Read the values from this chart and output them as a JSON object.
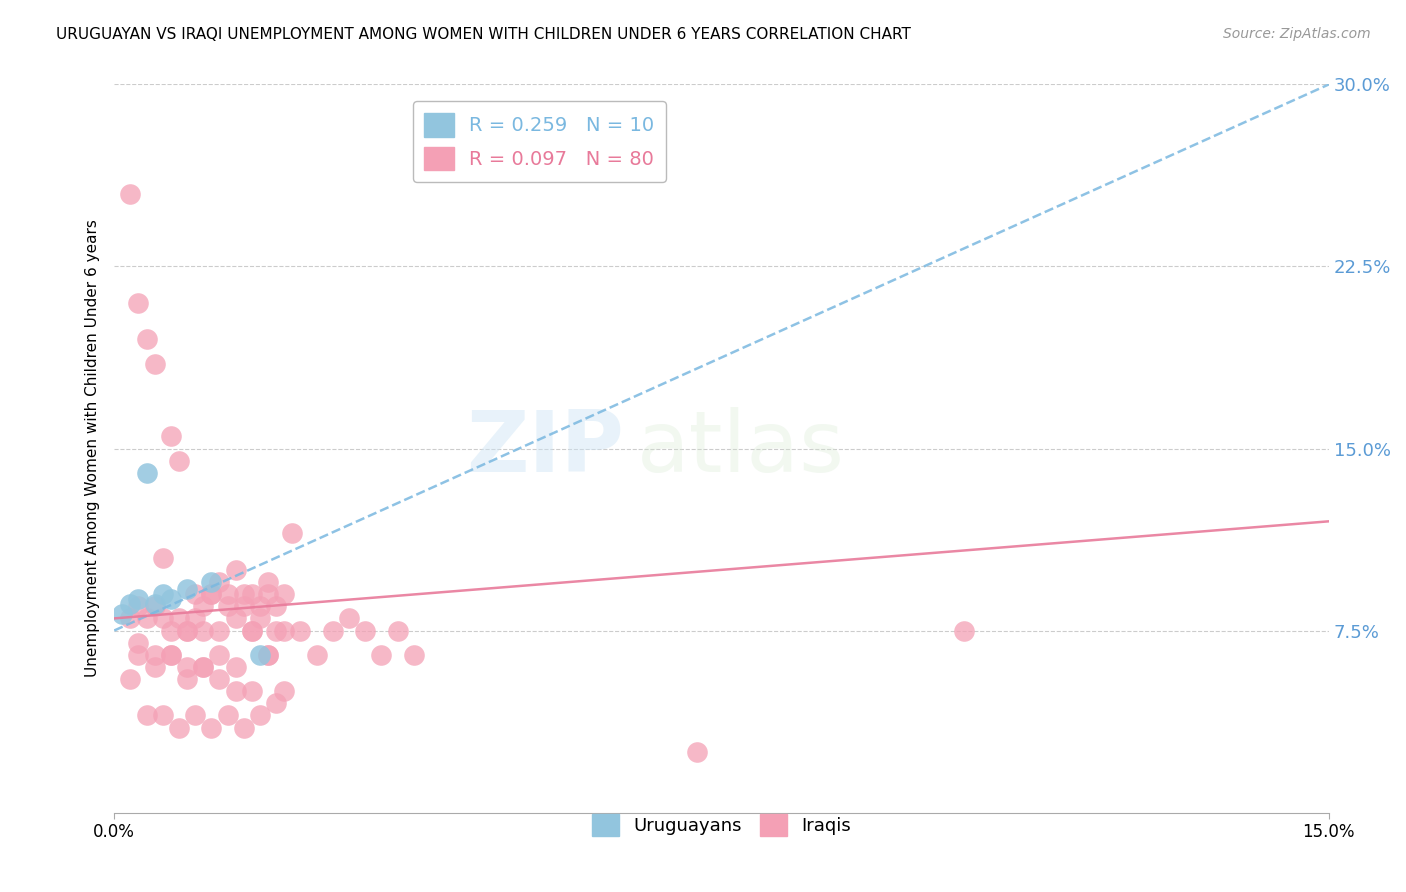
{
  "title": "URUGUAYAN VS IRAQI UNEMPLOYMENT AMONG WOMEN WITH CHILDREN UNDER 6 YEARS CORRELATION CHART",
  "source": "Source: ZipAtlas.com",
  "ylabel": "Unemployment Among Women with Children Under 6 years",
  "xlim": [
    0.0,
    0.15
  ],
  "ylim": [
    0.0,
    0.3
  ],
  "yticks": [
    0.075,
    0.15,
    0.225,
    0.3
  ],
  "ytick_labels": [
    "7.5%",
    "15.0%",
    "22.5%",
    "30.0%"
  ],
  "watermark_zip": "ZIP",
  "watermark_atlas": "atlas",
  "uruguayan_color": "#92c5de",
  "iraqi_color": "#f4a0b5",
  "trendline_uru_color": "#7ab8e0",
  "trendline_irq_color": "#e87a9a",
  "legend_uru_R": "0.259",
  "legend_uru_N": "10",
  "legend_irq_R": "0.097",
  "legend_irq_N": "80",
  "uruguayan_x": [
    0.001,
    0.002,
    0.003,
    0.004,
    0.005,
    0.006,
    0.007,
    0.009,
    0.012,
    0.018
  ],
  "uruguayan_y": [
    0.082,
    0.086,
    0.088,
    0.14,
    0.086,
    0.09,
    0.088,
    0.092,
    0.095,
    0.065
  ],
  "iraqi_x": [
    0.002,
    0.003,
    0.004,
    0.005,
    0.006,
    0.007,
    0.008,
    0.009,
    0.01,
    0.011,
    0.012,
    0.013,
    0.014,
    0.015,
    0.016,
    0.017,
    0.018,
    0.019,
    0.02,
    0.021,
    0.002,
    0.003,
    0.004,
    0.005,
    0.006,
    0.007,
    0.008,
    0.009,
    0.01,
    0.011,
    0.012,
    0.013,
    0.014,
    0.015,
    0.016,
    0.017,
    0.018,
    0.019,
    0.02,
    0.022,
    0.003,
    0.005,
    0.007,
    0.009,
    0.011,
    0.013,
    0.015,
    0.017,
    0.019,
    0.021,
    0.002,
    0.004,
    0.006,
    0.008,
    0.01,
    0.012,
    0.014,
    0.016,
    0.018,
    0.02,
    0.003,
    0.005,
    0.007,
    0.009,
    0.011,
    0.013,
    0.015,
    0.017,
    0.019,
    0.021,
    0.023,
    0.025,
    0.027,
    0.029,
    0.031,
    0.033,
    0.035,
    0.037,
    0.072,
    0.105
  ],
  "iraqi_y": [
    0.255,
    0.21,
    0.195,
    0.185,
    0.105,
    0.155,
    0.145,
    0.075,
    0.09,
    0.085,
    0.09,
    0.095,
    0.09,
    0.1,
    0.09,
    0.09,
    0.085,
    0.09,
    0.085,
    0.09,
    0.08,
    0.085,
    0.08,
    0.085,
    0.08,
    0.075,
    0.08,
    0.075,
    0.08,
    0.075,
    0.09,
    0.075,
    0.085,
    0.08,
    0.085,
    0.075,
    0.08,
    0.095,
    0.075,
    0.115,
    0.065,
    0.06,
    0.065,
    0.055,
    0.06,
    0.055,
    0.06,
    0.05,
    0.065,
    0.05,
    0.055,
    0.04,
    0.04,
    0.035,
    0.04,
    0.035,
    0.04,
    0.035,
    0.04,
    0.045,
    0.07,
    0.065,
    0.065,
    0.06,
    0.06,
    0.065,
    0.05,
    0.075,
    0.065,
    0.075,
    0.075,
    0.065,
    0.075,
    0.08,
    0.075,
    0.065,
    0.075,
    0.065,
    0.025,
    0.075
  ]
}
